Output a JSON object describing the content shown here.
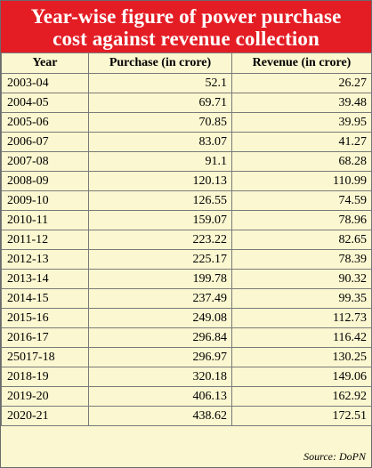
{
  "title": {
    "line1": "Year-wise figure of power purchase",
    "line2": "cost against revenue collection"
  },
  "headers": {
    "year": "Year",
    "purchase": "Purchase (in crore)",
    "revenue": "Revenue (in crore)"
  },
  "rows": [
    {
      "year": "2003-04",
      "purchase": "52.1",
      "revenue": "26.27"
    },
    {
      "year": "2004-05",
      "purchase": "69.71",
      "revenue": "39.48"
    },
    {
      "year": "2005-06",
      "purchase": "70.85",
      "revenue": "39.95"
    },
    {
      "year": "2006-07",
      "purchase": "83.07",
      "revenue": "41.27"
    },
    {
      "year": "2007-08",
      "purchase": "91.1",
      "revenue": "68.28"
    },
    {
      "year": "2008-09",
      "purchase": "120.13",
      "revenue": "110.99"
    },
    {
      "year": "2009-10",
      "purchase": "126.55",
      "revenue": "74.59"
    },
    {
      "year": "2010-11",
      "purchase": "159.07",
      "revenue": "78.96"
    },
    {
      "year": "2011-12",
      "purchase": "223.22",
      "revenue": "82.65"
    },
    {
      "year": "2012-13",
      "purchase": "225.17",
      "revenue": "78.39"
    },
    {
      "year": "2013-14",
      "purchase": "199.78",
      "revenue": "90.32"
    },
    {
      "year": "2014-15",
      "purchase": "237.49",
      "revenue": "99.35"
    },
    {
      "year": "2015-16",
      "purchase": "249.08",
      "revenue": "112.73"
    },
    {
      "year": "2016-17",
      "purchase": "296.84",
      "revenue": "116.42"
    },
    {
      "year": "25017-18",
      "purchase": "296.97",
      "revenue": "130.25"
    },
    {
      "year": "2018-19",
      "purchase": "320.18",
      "revenue": "149.06"
    },
    {
      "year": "2019-20",
      "purchase": "406.13",
      "revenue": "162.92"
    },
    {
      "year": "2020-21",
      "purchase": "438.62",
      "revenue": "172.51"
    }
  ],
  "source": "Source: DoPN",
  "colors": {
    "title_background": "#e41d25",
    "title_text": "#ffffff",
    "table_background": "#fbf7d0",
    "grid": "#7a7a7a"
  }
}
